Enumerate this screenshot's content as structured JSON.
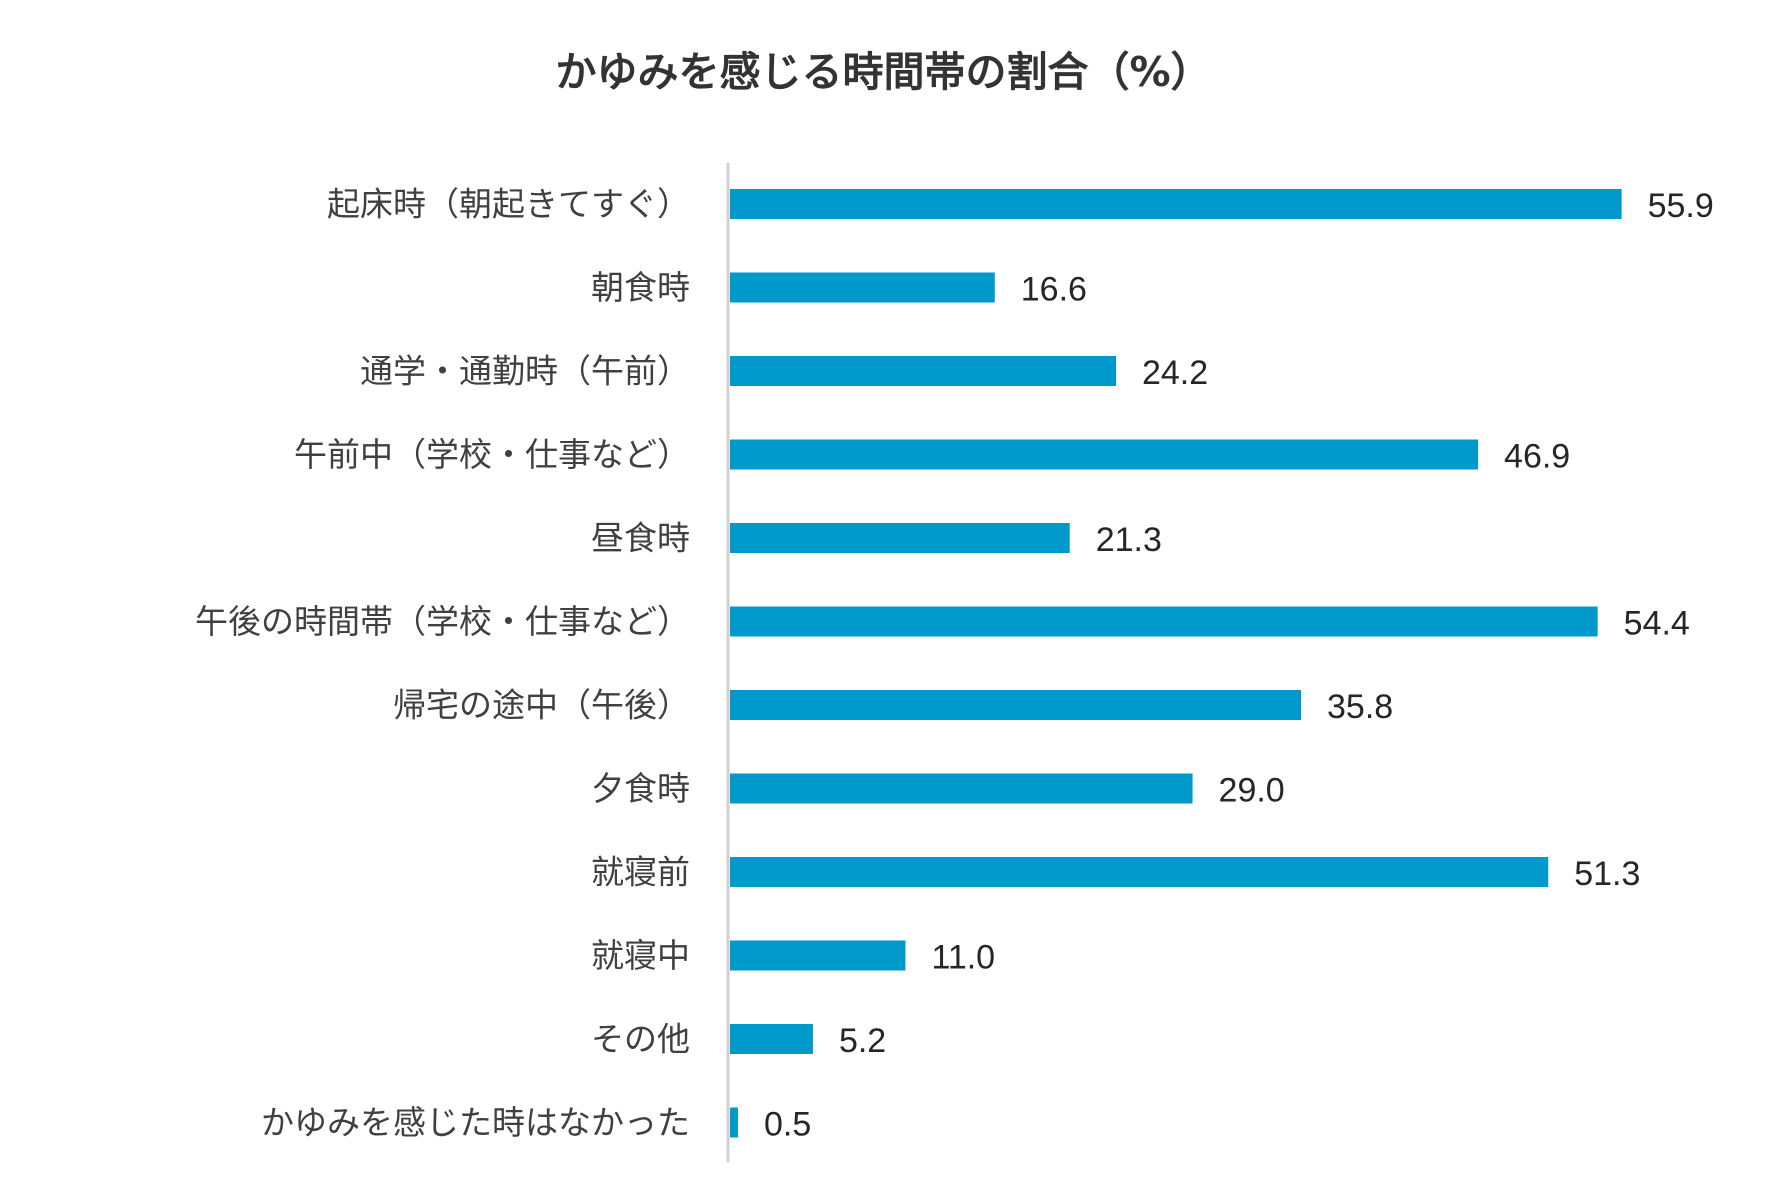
{
  "chart_data": {
    "type": "bar",
    "orientation": "horizontal",
    "title": "かゆみを感じる時間帯の割合（%）",
    "xlabel": "",
    "ylabel": "",
    "xlim": [
      0,
      60
    ],
    "grid": false,
    "legend": "none",
    "bar_color": "#0099cc",
    "categories": [
      "起床時（朝起きてすぐ）",
      "朝食時",
      "通学・通勤時（午前）",
      "午前中（学校・仕事など）",
      "昼食時",
      "午後の時間帯（学校・仕事など）",
      "帰宅の途中（午後）",
      "夕食時",
      "就寝前",
      "就寝中",
      "その他",
      "かゆみを感じた時はなかった"
    ],
    "values": [
      55.9,
      16.6,
      24.2,
      46.9,
      21.3,
      54.4,
      35.8,
      29.0,
      51.3,
      11.0,
      5.2,
      0.5
    ],
    "value_labels": [
      "55.9",
      "16.6",
      "24.2",
      "46.9",
      "21.3",
      "54.4",
      "35.8",
      "29.0",
      "51.3",
      "11.0",
      "5.2",
      "0.5"
    ]
  }
}
